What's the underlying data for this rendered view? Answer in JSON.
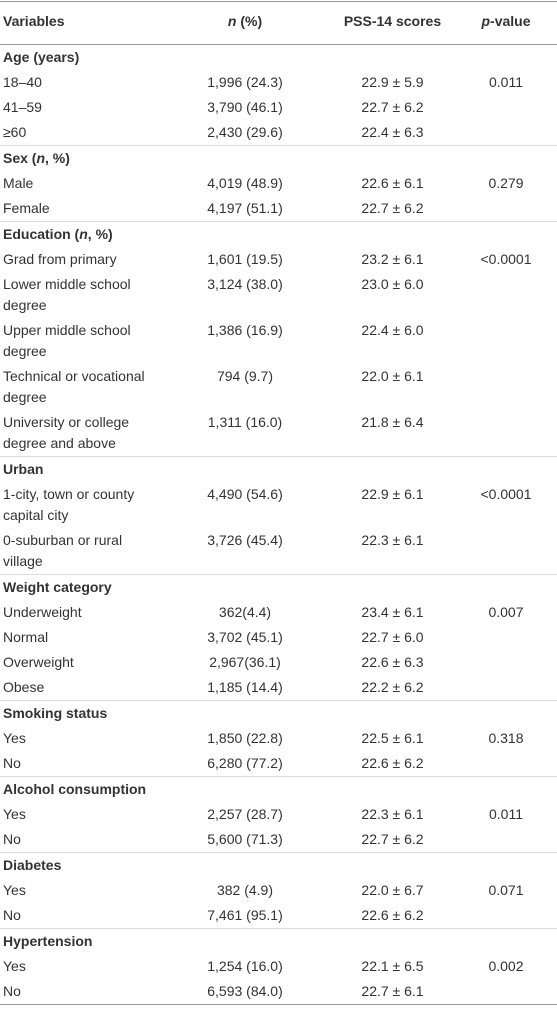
{
  "table": {
    "header": [
      [
        {
          "text": "Variables",
          "italic": false
        }
      ],
      [
        {
          "text": "n",
          "italic": true
        },
        {
          "text": " (%)",
          "italic": false
        }
      ],
      [
        {
          "text": "PSS-14 scores",
          "italic": false
        }
      ],
      [
        {
          "text": "p",
          "italic": true
        },
        {
          "text": "-value",
          "italic": false
        }
      ]
    ],
    "sections": [
      {
        "title": [
          {
            "text": "Age (years)",
            "italic": false
          }
        ],
        "rows": [
          [
            "18–40",
            "1,996 (24.3)",
            "22.9 ± 5.9",
            "0.011"
          ],
          [
            "41–59",
            "3,790 (46.1)",
            "22.7 ± 6.2",
            null
          ],
          [
            "≥60",
            "2,430 (29.6)",
            "22.4 ± 6.3",
            null
          ]
        ]
      },
      {
        "title": [
          {
            "text": "Sex (",
            "italic": false
          },
          {
            "text": "n",
            "italic": true
          },
          {
            "text": ", %)",
            "italic": false
          }
        ],
        "rows": [
          [
            "Male",
            "4,019 (48.9)",
            "22.6 ± 6.1",
            "0.279"
          ],
          [
            "Female",
            "4,197 (51.1)",
            "22.7 ± 6.2",
            null
          ]
        ]
      },
      {
        "title": [
          {
            "text": "Education (",
            "italic": false
          },
          {
            "text": "n",
            "italic": true
          },
          {
            "text": ", %)",
            "italic": false
          }
        ],
        "rows": [
          [
            "Grad from primary",
            "1,601 (19.5)",
            "23.2 ± 6.1",
            "<0.0001"
          ],
          [
            "Lower middle school degree",
            "3,124 (38.0)",
            "23.0 ± 6.0",
            null
          ],
          [
            "Upper middle school degree",
            "1,386 (16.9)",
            "22.4 ± 6.0",
            null
          ],
          [
            "Technical or vocational degree",
            "794 (9.7)",
            "22.0 ± 6.1",
            null
          ],
          [
            "University or college degree and above",
            "1,311 (16.0)",
            "21.8 ± 6.4",
            null
          ]
        ]
      },
      {
        "title": [
          {
            "text": "Urban",
            "italic": false
          }
        ],
        "rows": [
          [
            "1-city, town or county capital city",
            "4,490 (54.6)",
            "22.9 ± 6.1",
            "<0.0001"
          ],
          [
            "0-suburban or rural village",
            "3,726 (45.4)",
            "22.3 ± 6.1",
            null
          ]
        ]
      },
      {
        "title": [
          {
            "text": "Weight category",
            "italic": false
          }
        ],
        "rows": [
          [
            "Underweight",
            "362(4.4)",
            "23.4 ± 6.1",
            "0.007"
          ],
          [
            "Normal",
            "3,702 (45.1)",
            "22.7 ± 6.0",
            null
          ],
          [
            "Overweight",
            "2,967(36.1)",
            "22.6 ± 6.3",
            null
          ],
          [
            "Obese",
            "1,185 (14.4)",
            "22.2 ± 6.2",
            null
          ]
        ]
      },
      {
        "title": [
          {
            "text": "Smoking status",
            "italic": false
          }
        ],
        "rows": [
          [
            "Yes",
            "1,850 (22.8)",
            "22.5 ± 6.1",
            "0.318"
          ],
          [
            "No",
            "6,280 (77.2)",
            "22.6 ± 6.2",
            null
          ]
        ]
      },
      {
        "title": [
          {
            "text": "Alcohol consumption",
            "italic": false
          }
        ],
        "rows": [
          [
            "Yes",
            "2,257 (28.7)",
            "22.3 ± 6.1",
            "0.011"
          ],
          [
            "No",
            "5,600 (71.3)",
            "22.7 ± 6.2",
            null
          ]
        ]
      },
      {
        "title": [
          {
            "text": "Diabetes",
            "italic": false
          }
        ],
        "rows": [
          [
            "Yes",
            "382 (4.9)",
            "22.0 ± 6.7",
            "0.071"
          ],
          [
            "No",
            "7,461 (95.1)",
            "22.6 ± 6.2",
            null
          ]
        ]
      },
      {
        "title": [
          {
            "text": "Hypertension",
            "italic": false
          }
        ],
        "rows": [
          [
            "Yes",
            "1,254 (16.0)",
            "22.1 ± 6.5",
            "0.002"
          ],
          [
            "No",
            "6,593 (84.0)",
            "22.7 ± 6.1",
            null
          ]
        ]
      }
    ]
  }
}
